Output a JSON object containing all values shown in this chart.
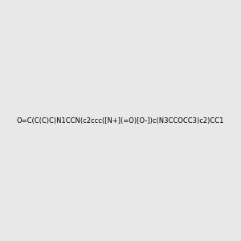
{
  "smiles": "O=C(C(C)C)N1CCN(c2ccc([N+](=O)[O-])c(N3CCOCC3)c2)CC1",
  "image_size": 300,
  "background_color": "#e8e8e8",
  "title": ""
}
